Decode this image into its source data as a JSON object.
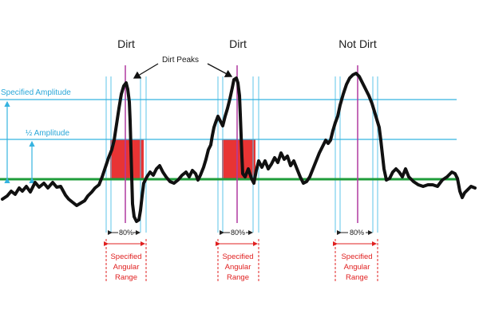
{
  "headings": {
    "left": "Dirt",
    "middle": "Dirt",
    "right": "Not Dirt"
  },
  "callout": "Dirt Peaks",
  "levels": {
    "specified_amplitude": "Specified Amplitude",
    "half_amplitude": "½ Amplitude"
  },
  "windows": [
    {
      "percent": "80%",
      "range_line1": "Specified",
      "range_line2": "Angular",
      "range_line3": "Range"
    },
    {
      "percent": "80%",
      "range_line1": "Specified",
      "range_line2": "Angular",
      "range_line3": "Range"
    },
    {
      "percent": "80%",
      "range_line1": "Specified",
      "range_line2": "Angular",
      "range_line3": "Range"
    }
  ],
  "colors": {
    "signal": "#111111",
    "baseline": "#1f9d3a",
    "threshold": "#35b3e0",
    "window": "#5ec6e8",
    "peak_marker": "#b03aa0",
    "dirt_fill": "#e83434",
    "range_text": "#e02020"
  }
}
